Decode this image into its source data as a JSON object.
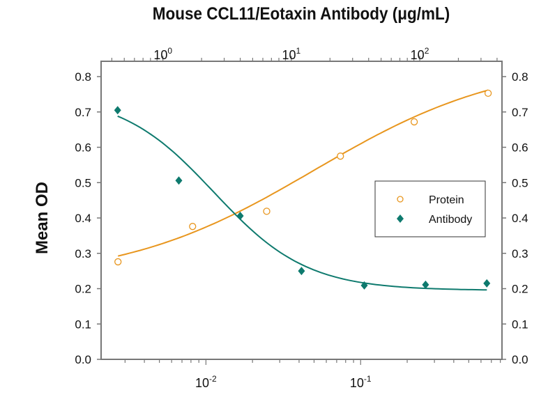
{
  "chart_data": {
    "type": "scatter",
    "title": "Mouse CCL11/Eotaxin Antibody (μg/mL)",
    "ylabel": "Mean OD",
    "xlabel": "",
    "ylim": [
      0,
      0.8
    ],
    "yticks": [
      "0.0",
      "0.1",
      "0.2",
      "0.3",
      "0.4",
      "0.5",
      "0.6",
      "0.7",
      "0.8"
    ],
    "bottom_axis": {
      "scale": "log",
      "range": [
        0.0021,
        0.82
      ],
      "major_ticks": [
        {
          "base": "10",
          "exp": "-2",
          "value": 0.01
        },
        {
          "base": "10",
          "exp": "-1",
          "value": 0.1
        }
      ]
    },
    "top_axis": {
      "scale": "log",
      "range": [
        0.33,
        437
      ],
      "major_ticks": [
        {
          "base": "10",
          "exp": "0",
          "value": 1
        },
        {
          "base": "10",
          "exp": "1",
          "value": 10
        },
        {
          "base": "10",
          "exp": "2",
          "value": 100
        }
      ]
    },
    "grid": false,
    "legend": {
      "placement": "right",
      "entries": [
        "Protein",
        "Antibody"
      ]
    },
    "series": [
      {
        "name": "Protein",
        "axis": "bottom",
        "marker": "open-circle",
        "color": "#e8961e",
        "x": [
          0.0027,
          0.0082,
          0.0247,
          0.074,
          0.222,
          0.667
        ],
        "y": [
          0.276,
          0.376,
          0.419,
          0.575,
          0.672,
          0.753
        ],
        "fit": {
          "bottom": 0.22,
          "top": 0.85,
          "ec50": 0.05,
          "hill": 0.7
        }
      },
      {
        "name": "Antibody",
        "axis": "top",
        "marker": "filled-diamond",
        "color": "#0e7a6e",
        "x": [
          0.444,
          1.33,
          4,
          12,
          37,
          111,
          333
        ],
        "y": [
          0.705,
          0.506,
          0.406,
          0.25,
          0.209,
          0.211,
          0.215
        ],
        "fit": {
          "bottom": 0.195,
          "top": 0.75,
          "ec50": 2.5,
          "hill": 1.2
        }
      }
    ]
  }
}
